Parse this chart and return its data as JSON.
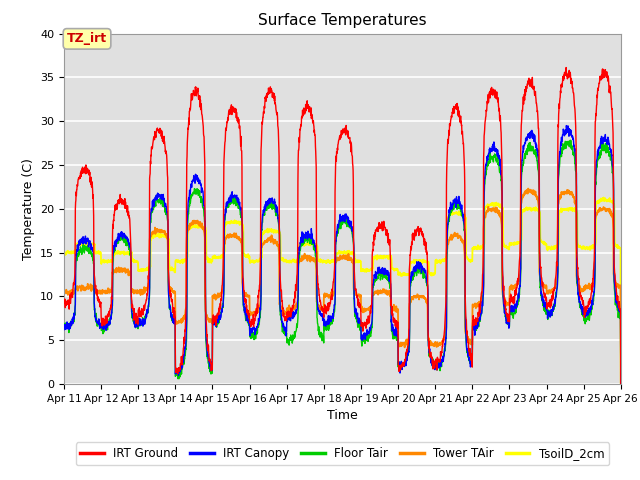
{
  "title": "Surface Temperatures",
  "xlabel": "Time",
  "ylabel": "Temperature (C)",
  "ylim": [
    0,
    40
  ],
  "n_days": 15,
  "series_colors": {
    "IRT Ground": "#ff0000",
    "IRT Canopy": "#0000ff",
    "Floor Tair": "#00cc00",
    "Tower TAir": "#ff8800",
    "TsoilD_2cm": "#ffff00"
  },
  "legend_labels": [
    "IRT Ground",
    "IRT Canopy",
    "Floor Tair",
    "Tower TAir",
    "TsoilD_2cm"
  ],
  "xtick_labels": [
    "Apr 11",
    "Apr 12",
    "Apr 13",
    "Apr 14",
    "Apr 15",
    "Apr 16",
    "Apr 17",
    "Apr 18",
    "Apr 19",
    "Apr 20",
    "Apr 21",
    "Apr 22",
    "Apr 23",
    "Apr 24",
    "Apr 25",
    "Apr 26"
  ],
  "annotation_text": "TZ_irt",
  "background_color": "#e0e0e0",
  "linewidth": 1.0,
  "red_peaks": [
    24.5,
    21.0,
    29.0,
    33.5,
    31.5,
    33.5,
    31.5,
    29.0,
    18.0,
    17.5,
    31.5,
    33.5,
    34.5,
    35.5,
    35.5
  ],
  "red_troughs": [
    9.0,
    7.0,
    8.0,
    1.5,
    7.5,
    7.0,
    8.0,
    8.5,
    6.5,
    2.0,
    2.5,
    7.0,
    9.5,
    9.0,
    8.5
  ],
  "blue_peaks": [
    16.5,
    17.0,
    21.5,
    23.5,
    21.5,
    21.0,
    17.0,
    19.0,
    13.0,
    13.5,
    21.0,
    27.0,
    28.5,
    29.0,
    28.0
  ],
  "blue_troughs": [
    6.5,
    6.5,
    7.0,
    1.5,
    7.0,
    6.0,
    7.5,
    7.0,
    5.5,
    2.0,
    2.0,
    6.5,
    8.5,
    8.0,
    8.0
  ],
  "green_peaks": [
    15.5,
    16.5,
    21.0,
    22.0,
    21.0,
    20.5,
    16.5,
    18.5,
    12.5,
    13.0,
    20.5,
    26.0,
    27.0,
    27.5,
    27.0
  ],
  "green_troughs": [
    6.5,
    6.5,
    7.0,
    1.0,
    7.0,
    5.5,
    5.0,
    6.5,
    5.0,
    2.0,
    2.0,
    6.5,
    8.0,
    8.0,
    7.5
  ],
  "orange_peaks": [
    11.0,
    13.0,
    17.5,
    18.5,
    17.0,
    16.5,
    14.5,
    14.5,
    10.5,
    10.0,
    17.0,
    20.0,
    22.0,
    22.0,
    20.0
  ],
  "orange_troughs": [
    10.5,
    10.5,
    10.5,
    7.0,
    10.0,
    8.0,
    8.5,
    10.0,
    8.5,
    4.5,
    4.5,
    9.0,
    11.0,
    10.5,
    11.0
  ],
  "yellow_peaks": [
    16.0,
    15.0,
    17.0,
    18.0,
    18.5,
    17.5,
    16.0,
    15.0,
    14.5,
    14.0,
    19.5,
    20.5,
    20.0,
    20.0,
    21.0
  ],
  "yellow_troughs": [
    15.0,
    14.0,
    13.0,
    14.0,
    14.5,
    14.0,
    14.0,
    14.0,
    13.0,
    12.5,
    14.0,
    15.5,
    16.0,
    15.5,
    15.5
  ]
}
